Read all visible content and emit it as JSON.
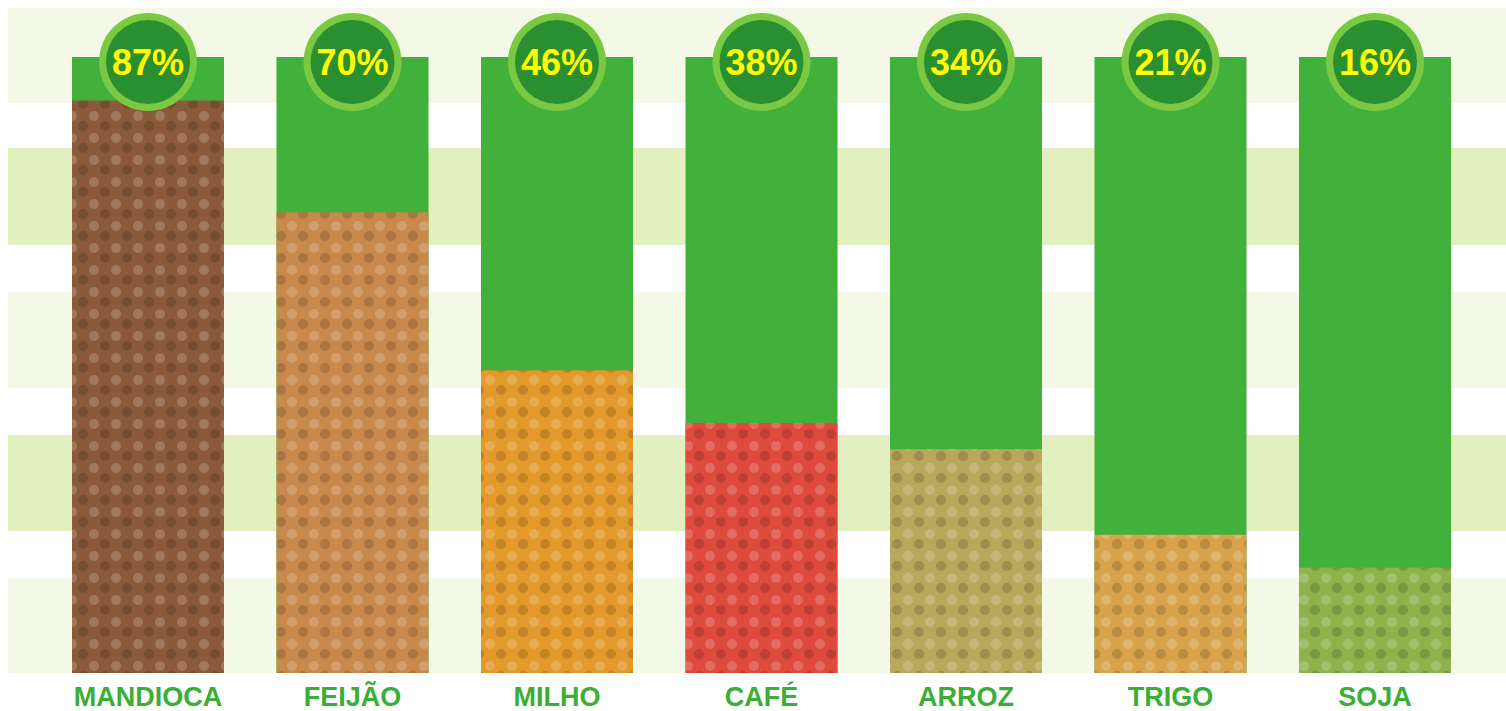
{
  "chart_data": {
    "type": "bar",
    "categories": [
      "MANDIOCA",
      "FEIJÃO",
      "MILHO",
      "CAFÉ",
      "ARROZ",
      "TRIGO",
      "SOJA"
    ],
    "values": [
      87,
      70,
      46,
      38,
      34,
      21,
      16
    ],
    "value_labels": [
      "87%",
      "70%",
      "46%",
      "38%",
      "34%",
      "21%",
      "16%"
    ],
    "colors": [
      "#8a5a3a",
      "#c88a4c",
      "#e39a2c",
      "#de4a3c",
      "#b9a75c",
      "#d8a34c",
      "#8fb24c"
    ],
    "ylim": [
      0,
      100
    ],
    "grid": false,
    "data_labels": true,
    "tick_labels": false
  }
}
